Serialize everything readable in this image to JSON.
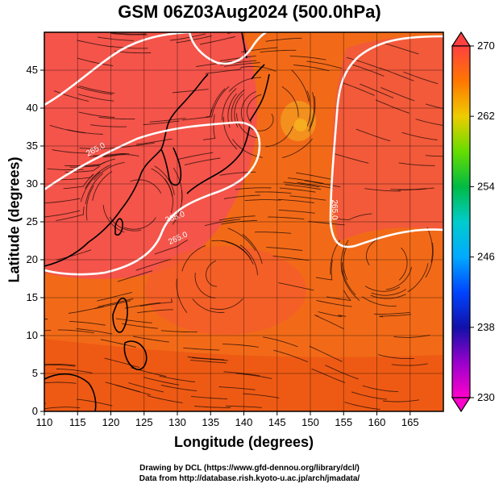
{
  "title": "GSM 06Z03Aug2024 (500.0hPa)",
  "xlabel": "Longitude (degrees)",
  "ylabel": "Latitude  (degrees)",
  "credit_line1": "Drawing by DCL (https://www.gfd-dennou.org/library/dcl/)",
  "credit_line2": "Data from http://database.rish.kyoto-u.ac.jp/arch/jmadata/",
  "chart_data": {
    "type": "heatmap",
    "xlim": [
      110,
      170
    ],
    "ylim": [
      0,
      50
    ],
    "x_ticks": [
      "110",
      "115",
      "120",
      "125",
      "130",
      "135",
      "140",
      "145",
      "150",
      "155",
      "160",
      "165"
    ],
    "y_ticks": [
      "0",
      "5",
      "10",
      "15",
      "20",
      "25",
      "30",
      "35",
      "40",
      "45"
    ],
    "colorbar": {
      "min": 230,
      "max": 270,
      "ticks": [
        "270",
        "262",
        "254",
        "246",
        "238",
        "230"
      ]
    },
    "contour_labels": [
      "265.0",
      "265.0",
      "265.0",
      "265.0"
    ],
    "grid": true
  }
}
